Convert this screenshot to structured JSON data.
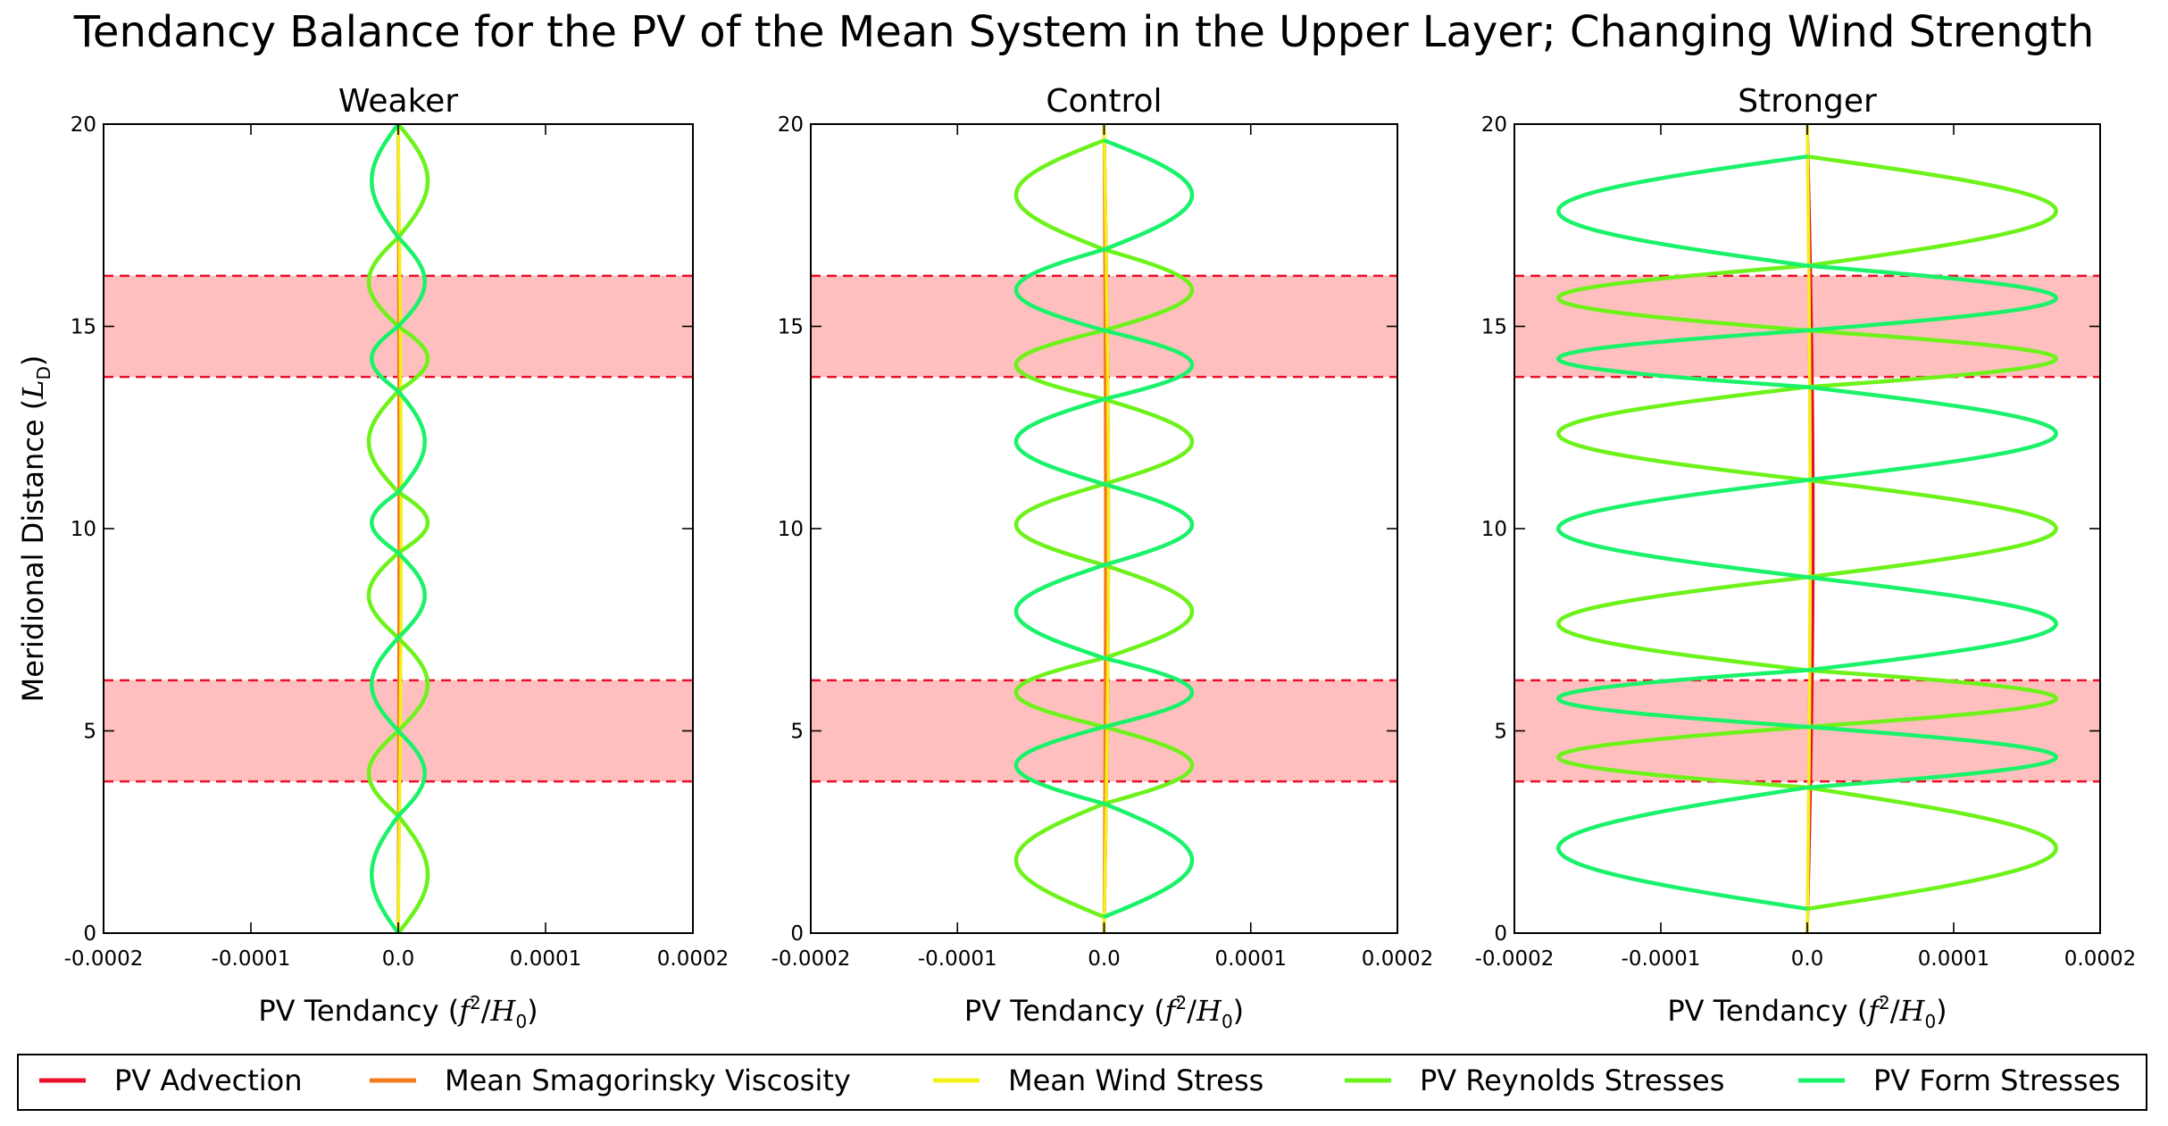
{
  "figure": {
    "title": "Tendancy Balance for the PV of the Mean System in the Upper Layer; Changing Wind Strength"
  },
  "legend": {
    "items": [
      {
        "label": "PV Advection",
        "color": "#e8102a"
      },
      {
        "label": "Mean Smagorinsky Viscosity",
        "color": "#f57a1c"
      },
      {
        "label": "Mean Wind Stress",
        "color": "#f2f21a"
      },
      {
        "label": "PV Reynolds Stresses",
        "color": "#6df21a"
      },
      {
        "label": "PV Form Stresses",
        "color": "#1af26a"
      }
    ]
  },
  "chart_data": [
    {
      "type": "line",
      "title": "Weaker",
      "xlabel": "PV Tendancy",
      "xlabel_unit_num": "f",
      "xlabel_unit_sup": "2",
      "xlabel_unit_den": "H",
      "xlabel_unit_sub": "0",
      "ylabel": "Meridional Distance",
      "ylabel_unit": "L",
      "ylabel_unit_sub": "D",
      "xlim": [
        -0.0002,
        0.0002
      ],
      "ylim": [
        0,
        20
      ],
      "xticks": [
        "-0.0002",
        "-0.0001",
        "0.0",
        "0.0001",
        "0.0002"
      ],
      "yticks": [
        "0",
        "5",
        "10",
        "15",
        "20"
      ],
      "shaded_bands": [
        [
          3.75,
          6.25
        ],
        [
          13.75,
          16.25
        ]
      ],
      "series": [
        {
          "name": "PV Advection",
          "color": "#e8102a",
          "amplitude": 1e-06,
          "nodes": [
            0,
            20
          ]
        },
        {
          "name": "Mean Smagorinsky Viscosity",
          "color": "#f57a1c",
          "amplitude": 5e-07,
          "nodes": [
            0,
            20
          ]
        },
        {
          "name": "Mean Wind Stress",
          "color": "#f2f21a",
          "amplitude": 2e-06,
          "nodes": [
            0,
            20
          ]
        },
        {
          "name": "PV Reynolds Stresses",
          "color": "#6df21a",
          "amplitude": 2e-05,
          "nodes": [
            0,
            2.9,
            5.0,
            7.3,
            9.4,
            10.9,
            13.4,
            15.0,
            17.2,
            20
          ]
        },
        {
          "name": "PV Form Stresses",
          "color": "#1af26a",
          "amplitude": -1.8e-05,
          "nodes": [
            0,
            2.9,
            5.0,
            7.3,
            9.4,
            10.9,
            13.4,
            15.0,
            17.2,
            20
          ]
        }
      ]
    },
    {
      "type": "line",
      "title": "Control",
      "xlabel": "PV Tendancy",
      "xlabel_unit_num": "f",
      "xlabel_unit_sup": "2",
      "xlabel_unit_den": "H",
      "xlabel_unit_sub": "0",
      "ylabel": "",
      "xlim": [
        -0.0002,
        0.0002
      ],
      "ylim": [
        0,
        20
      ],
      "xticks": [
        "-0.0002",
        "-0.0001",
        "0.0",
        "0.0001",
        "0.0002"
      ],
      "yticks": [
        "0",
        "5",
        "10",
        "15",
        "20"
      ],
      "shaded_bands": [
        [
          3.75,
          6.25
        ],
        [
          13.75,
          16.25
        ]
      ],
      "series": [
        {
          "name": "PV Advection",
          "color": "#e8102a",
          "amplitude": 3e-06,
          "nodes": [
            0,
            20
          ]
        },
        {
          "name": "Mean Smagorinsky Viscosity",
          "color": "#f57a1c",
          "amplitude": 1e-06,
          "nodes": [
            0,
            20
          ]
        },
        {
          "name": "Mean Wind Stress",
          "color": "#f2f21a",
          "amplitude": 3e-06,
          "nodes": [
            0,
            20
          ]
        },
        {
          "name": "PV Reynolds Stresses",
          "color": "#6df21a",
          "amplitude": -6e-05,
          "nodes": [
            0.4,
            3.2,
            5.1,
            6.8,
            9.1,
            11.1,
            13.2,
            14.9,
            16.9,
            19.6
          ]
        },
        {
          "name": "PV Form Stresses",
          "color": "#1af26a",
          "amplitude": 6e-05,
          "nodes": [
            0.4,
            3.2,
            5.1,
            6.8,
            9.1,
            11.1,
            13.2,
            14.9,
            16.9,
            19.6
          ]
        }
      ]
    },
    {
      "type": "line",
      "title": "Stronger",
      "xlabel": "PV Tendancy",
      "xlabel_unit_num": "f",
      "xlabel_unit_sup": "2",
      "xlabel_unit_den": "H",
      "xlabel_unit_sub": "0",
      "ylabel": "",
      "xlim": [
        -0.0002,
        0.0002
      ],
      "ylim": [
        0,
        20
      ],
      "xticks": [
        "-0.0002",
        "-0.0001",
        "0.0",
        "0.0001",
        "0.0002"
      ],
      "yticks": [
        "0",
        "5",
        "10",
        "15",
        "20"
      ],
      "shaded_bands": [
        [
          3.75,
          6.25
        ],
        [
          13.75,
          16.25
        ]
      ],
      "series": [
        {
          "name": "PV Advection",
          "color": "#e8102a",
          "amplitude": 4e-06,
          "nodes": [
            0,
            20
          ]
        },
        {
          "name": "Mean Smagorinsky Viscosity",
          "color": "#f57a1c",
          "amplitude": 2e-06,
          "nodes": [
            0,
            20
          ]
        },
        {
          "name": "Mean Wind Stress",
          "color": "#f2f21a",
          "amplitude": 2e-06,
          "nodes": [
            0,
            20
          ]
        },
        {
          "name": "PV Reynolds Stresses",
          "color": "#6df21a",
          "amplitude": 0.00017,
          "nodes": [
            0.6,
            3.6,
            5.1,
            6.5,
            8.8,
            11.2,
            13.5,
            14.9,
            16.5,
            19.2
          ]
        },
        {
          "name": "PV Form Stresses",
          "color": "#1af26a",
          "amplitude": -0.00017,
          "nodes": [
            0.6,
            3.6,
            5.1,
            6.5,
            8.8,
            11.2,
            13.5,
            14.9,
            16.5,
            19.2
          ]
        }
      ]
    }
  ]
}
